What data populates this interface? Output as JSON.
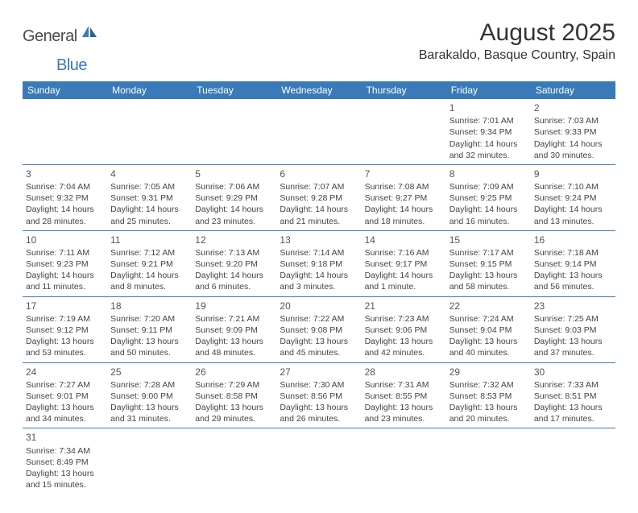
{
  "brand": {
    "text1": "General",
    "text2": "Blue"
  },
  "header": {
    "title": "August 2025",
    "location": "Barakaldo, Basque Country, Spain"
  },
  "colors": {
    "accent": "#3a7ab8",
    "text": "#333333",
    "bg": "#ffffff"
  },
  "calendar": {
    "type": "table",
    "dayHeaders": [
      "Sunday",
      "Monday",
      "Tuesday",
      "Wednesday",
      "Thursday",
      "Friday",
      "Saturday"
    ],
    "fontSizes": {
      "header": 12,
      "daynum": 12,
      "body": 10.5
    },
    "weeks": [
      [
        null,
        null,
        null,
        null,
        null,
        {
          "n": "1",
          "sunrise": "Sunrise: 7:01 AM",
          "sunset": "Sunset: 9:34 PM",
          "daylight": "Daylight: 14 hours and 32 minutes."
        },
        {
          "n": "2",
          "sunrise": "Sunrise: 7:03 AM",
          "sunset": "Sunset: 9:33 PM",
          "daylight": "Daylight: 14 hours and 30 minutes."
        }
      ],
      [
        {
          "n": "3",
          "sunrise": "Sunrise: 7:04 AM",
          "sunset": "Sunset: 9:32 PM",
          "daylight": "Daylight: 14 hours and 28 minutes."
        },
        {
          "n": "4",
          "sunrise": "Sunrise: 7:05 AM",
          "sunset": "Sunset: 9:31 PM",
          "daylight": "Daylight: 14 hours and 25 minutes."
        },
        {
          "n": "5",
          "sunrise": "Sunrise: 7:06 AM",
          "sunset": "Sunset: 9:29 PM",
          "daylight": "Daylight: 14 hours and 23 minutes."
        },
        {
          "n": "6",
          "sunrise": "Sunrise: 7:07 AM",
          "sunset": "Sunset: 9:28 PM",
          "daylight": "Daylight: 14 hours and 21 minutes."
        },
        {
          "n": "7",
          "sunrise": "Sunrise: 7:08 AM",
          "sunset": "Sunset: 9:27 PM",
          "daylight": "Daylight: 14 hours and 18 minutes."
        },
        {
          "n": "8",
          "sunrise": "Sunrise: 7:09 AM",
          "sunset": "Sunset: 9:25 PM",
          "daylight": "Daylight: 14 hours and 16 minutes."
        },
        {
          "n": "9",
          "sunrise": "Sunrise: 7:10 AM",
          "sunset": "Sunset: 9:24 PM",
          "daylight": "Daylight: 14 hours and 13 minutes."
        }
      ],
      [
        {
          "n": "10",
          "sunrise": "Sunrise: 7:11 AM",
          "sunset": "Sunset: 9:23 PM",
          "daylight": "Daylight: 14 hours and 11 minutes."
        },
        {
          "n": "11",
          "sunrise": "Sunrise: 7:12 AM",
          "sunset": "Sunset: 9:21 PM",
          "daylight": "Daylight: 14 hours and 8 minutes."
        },
        {
          "n": "12",
          "sunrise": "Sunrise: 7:13 AM",
          "sunset": "Sunset: 9:20 PM",
          "daylight": "Daylight: 14 hours and 6 minutes."
        },
        {
          "n": "13",
          "sunrise": "Sunrise: 7:14 AM",
          "sunset": "Sunset: 9:18 PM",
          "daylight": "Daylight: 14 hours and 3 minutes."
        },
        {
          "n": "14",
          "sunrise": "Sunrise: 7:16 AM",
          "sunset": "Sunset: 9:17 PM",
          "daylight": "Daylight: 14 hours and 1 minute."
        },
        {
          "n": "15",
          "sunrise": "Sunrise: 7:17 AM",
          "sunset": "Sunset: 9:15 PM",
          "daylight": "Daylight: 13 hours and 58 minutes."
        },
        {
          "n": "16",
          "sunrise": "Sunrise: 7:18 AM",
          "sunset": "Sunset: 9:14 PM",
          "daylight": "Daylight: 13 hours and 56 minutes."
        }
      ],
      [
        {
          "n": "17",
          "sunrise": "Sunrise: 7:19 AM",
          "sunset": "Sunset: 9:12 PM",
          "daylight": "Daylight: 13 hours and 53 minutes."
        },
        {
          "n": "18",
          "sunrise": "Sunrise: 7:20 AM",
          "sunset": "Sunset: 9:11 PM",
          "daylight": "Daylight: 13 hours and 50 minutes."
        },
        {
          "n": "19",
          "sunrise": "Sunrise: 7:21 AM",
          "sunset": "Sunset: 9:09 PM",
          "daylight": "Daylight: 13 hours and 48 minutes."
        },
        {
          "n": "20",
          "sunrise": "Sunrise: 7:22 AM",
          "sunset": "Sunset: 9:08 PM",
          "daylight": "Daylight: 13 hours and 45 minutes."
        },
        {
          "n": "21",
          "sunrise": "Sunrise: 7:23 AM",
          "sunset": "Sunset: 9:06 PM",
          "daylight": "Daylight: 13 hours and 42 minutes."
        },
        {
          "n": "22",
          "sunrise": "Sunrise: 7:24 AM",
          "sunset": "Sunset: 9:04 PM",
          "daylight": "Daylight: 13 hours and 40 minutes."
        },
        {
          "n": "23",
          "sunrise": "Sunrise: 7:25 AM",
          "sunset": "Sunset: 9:03 PM",
          "daylight": "Daylight: 13 hours and 37 minutes."
        }
      ],
      [
        {
          "n": "24",
          "sunrise": "Sunrise: 7:27 AM",
          "sunset": "Sunset: 9:01 PM",
          "daylight": "Daylight: 13 hours and 34 minutes."
        },
        {
          "n": "25",
          "sunrise": "Sunrise: 7:28 AM",
          "sunset": "Sunset: 9:00 PM",
          "daylight": "Daylight: 13 hours and 31 minutes."
        },
        {
          "n": "26",
          "sunrise": "Sunrise: 7:29 AM",
          "sunset": "Sunset: 8:58 PM",
          "daylight": "Daylight: 13 hours and 29 minutes."
        },
        {
          "n": "27",
          "sunrise": "Sunrise: 7:30 AM",
          "sunset": "Sunset: 8:56 PM",
          "daylight": "Daylight: 13 hours and 26 minutes."
        },
        {
          "n": "28",
          "sunrise": "Sunrise: 7:31 AM",
          "sunset": "Sunset: 8:55 PM",
          "daylight": "Daylight: 13 hours and 23 minutes."
        },
        {
          "n": "29",
          "sunrise": "Sunrise: 7:32 AM",
          "sunset": "Sunset: 8:53 PM",
          "daylight": "Daylight: 13 hours and 20 minutes."
        },
        {
          "n": "30",
          "sunrise": "Sunrise: 7:33 AM",
          "sunset": "Sunset: 8:51 PM",
          "daylight": "Daylight: 13 hours and 17 minutes."
        }
      ],
      [
        {
          "n": "31",
          "sunrise": "Sunrise: 7:34 AM",
          "sunset": "Sunset: 8:49 PM",
          "daylight": "Daylight: 13 hours and 15 minutes."
        },
        null,
        null,
        null,
        null,
        null,
        null
      ]
    ]
  }
}
